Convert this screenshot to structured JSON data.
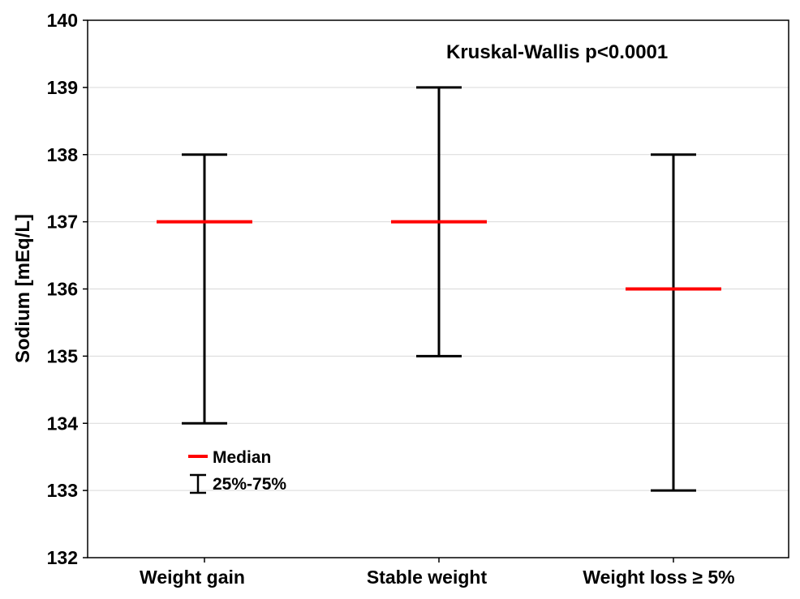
{
  "chart_data": {
    "type": "box-range",
    "title": "",
    "xlabel": "",
    "ylabel": "Sodium [mEq/L]",
    "ylim": [
      132,
      140
    ],
    "yticks": [
      132,
      133,
      134,
      135,
      136,
      137,
      138,
      139,
      140
    ],
    "grid": true,
    "categories": [
      "Weight gain",
      "Stable weight",
      "Weight loss ≥ 5%"
    ],
    "median": [
      137,
      137,
      136
    ],
    "q25": [
      134,
      135,
      133
    ],
    "q75": [
      138,
      139,
      138
    ],
    "annotation": "Kruskal-Wallis p<0.0001",
    "legend": {
      "placement": "lower-left",
      "median_label": "Median",
      "range_label": "25%-75%"
    },
    "colors": {
      "median": "#ff0000",
      "whisker": "#000000",
      "grid": "#d9d9d9"
    }
  }
}
